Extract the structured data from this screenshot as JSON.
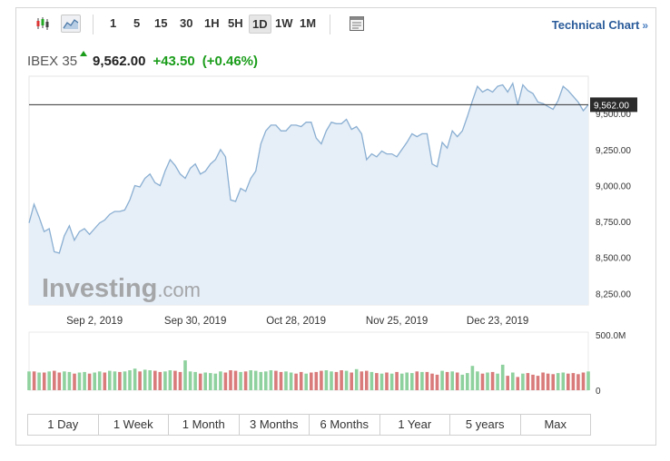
{
  "toolbar": {
    "intervals": [
      "1",
      "5",
      "15",
      "30",
      "1H",
      "5H",
      "1D",
      "1W",
      "1M"
    ],
    "active_interval": "1D",
    "tech_chart_label": "Technical Chart",
    "tech_chart_chevron": "»",
    "icons": [
      "candlestick-icon",
      "area-chart-icon",
      "settings-panel-icon"
    ]
  },
  "quote": {
    "name": "IBEX 35",
    "price": "9,562.00",
    "change": "+43.50",
    "change_pct": "(+0.46%)"
  },
  "watermark": {
    "brand": "Investing",
    "suffix": ".com"
  },
  "chart_data": {
    "type": "area",
    "series": [
      {
        "values": [
          8740,
          8870,
          8780,
          8680,
          8700,
          8540,
          8530,
          8650,
          8720,
          8620,
          8680,
          8700,
          8660,
          8700,
          8740,
          8760,
          8800,
          8820,
          8820,
          8830,
          8900,
          9000,
          8990,
          9050,
          9080,
          9020,
          9000,
          9100,
          9180,
          9140,
          9080,
          9050,
          9120,
          9150,
          9080,
          9100,
          9150,
          9180,
          9250,
          9200,
          8900,
          8890,
          8980,
          8960,
          9050,
          9100,
          9290,
          9380,
          9420,
          9420,
          9380,
          9380,
          9420,
          9420,
          9410,
          9440,
          9440,
          9330,
          9290,
          9380,
          9440,
          9430,
          9430,
          9460,
          9390,
          9410,
          9360,
          9180,
          9220,
          9200,
          9240,
          9220,
          9220,
          9200,
          9250,
          9300,
          9360,
          9340,
          9360,
          9360,
          9150,
          9130,
          9300,
          9260,
          9380,
          9340,
          9380,
          9480,
          9590,
          9690,
          9650,
          9670,
          9650,
          9690,
          9700,
          9650,
          9710,
          9560,
          9700,
          9660,
          9640,
          9580,
          9570,
          9550,
          9530,
          9590,
          9690,
          9660,
          9620,
          9580,
          9520,
          9562
        ],
        "volumes": [
          170,
          170,
          160,
          160,
          170,
          175,
          160,
          170,
          165,
          150,
          160,
          165,
          150,
          160,
          170,
          160,
          175,
          170,
          165,
          170,
          180,
          195,
          170,
          185,
          180,
          175,
          165,
          170,
          180,
          175,
          165,
          270,
          170,
          165,
          150,
          160,
          155,
          150,
          170,
          160,
          180,
          175,
          165,
          170,
          180,
          175,
          165,
          170,
          180,
          175,
          165,
          170,
          160,
          150,
          165,
          150,
          160,
          165,
          175,
          180,
          170,
          165,
          180,
          175,
          160,
          190,
          170,
          175,
          165,
          155,
          150,
          160,
          150,
          165,
          150,
          160,
          155,
          170,
          165,
          165,
          150,
          140,
          175,
          165,
          170,
          160,
          140,
          155,
          220,
          170,
          150,
          160,
          165,
          150,
          230,
          130,
          160,
          120,
          150,
          155,
          140,
          130,
          160,
          150,
          145,
          155,
          160,
          150,
          155,
          145,
          160,
          170
        ],
        "volume_colors": [
          "up",
          "down",
          "up",
          "down",
          "up",
          "down",
          "down",
          "up",
          "up",
          "down",
          "up",
          "up",
          "down",
          "up",
          "up",
          "down",
          "up",
          "up",
          "down",
          "up",
          "up",
          "up",
          "down",
          "up",
          "up",
          "down",
          "down",
          "up",
          "up",
          "down",
          "down",
          "up",
          "up",
          "up",
          "down",
          "up",
          "up",
          "up",
          "up",
          "down",
          "down",
          "down",
          "up",
          "down",
          "up",
          "up",
          "up",
          "up",
          "up",
          "down",
          "down",
          "up",
          "up",
          "down",
          "down",
          "up",
          "down",
          "down",
          "down",
          "up",
          "up",
          "down",
          "down",
          "up",
          "down",
          "up",
          "down",
          "down",
          "up",
          "down",
          "up",
          "down",
          "up",
          "down",
          "up",
          "up",
          "up",
          "down",
          "up",
          "down",
          "down",
          "down",
          "up",
          "down",
          "up",
          "down",
          "up",
          "up",
          "up",
          "up",
          "down",
          "up",
          "down",
          "up",
          "up",
          "down",
          "up",
          "down",
          "up",
          "down",
          "down",
          "down",
          "down",
          "down",
          "down",
          "up",
          "up",
          "down",
          "down",
          "down",
          "down",
          "up"
        ]
      }
    ],
    "xlabels": [
      "Sep 2, 2019",
      "Sep 30, 2019",
      "Oct 28, 2019",
      "Nov 25, 2019",
      "Dec 23, 2019"
    ],
    "xlabel_index": [
      13,
      33,
      53,
      73,
      93
    ],
    "yticks": [
      8250,
      8500,
      8750,
      9000,
      9250,
      9500
    ],
    "ytick_labels": [
      "8,250.00",
      "8,500.00",
      "8,750.00",
      "9,000.00",
      "9,250.00",
      "9,500.00"
    ],
    "ylim": [
      8170,
      9760
    ],
    "last_price": 9562,
    "last_price_label": "9,562.00",
    "volume_ticks": [
      "500.0M",
      "0"
    ],
    "volume_max": 500,
    "colors": {
      "line": "#8aafd2",
      "fill": "#e6eef7",
      "up": "#8fd19e",
      "down": "#d97b7b",
      "price_line": "#333333"
    }
  },
  "ranges": [
    "1 Day",
    "1 Week",
    "1 Month",
    "3 Months",
    "6 Months",
    "1 Year",
    "5 years",
    "Max"
  ]
}
